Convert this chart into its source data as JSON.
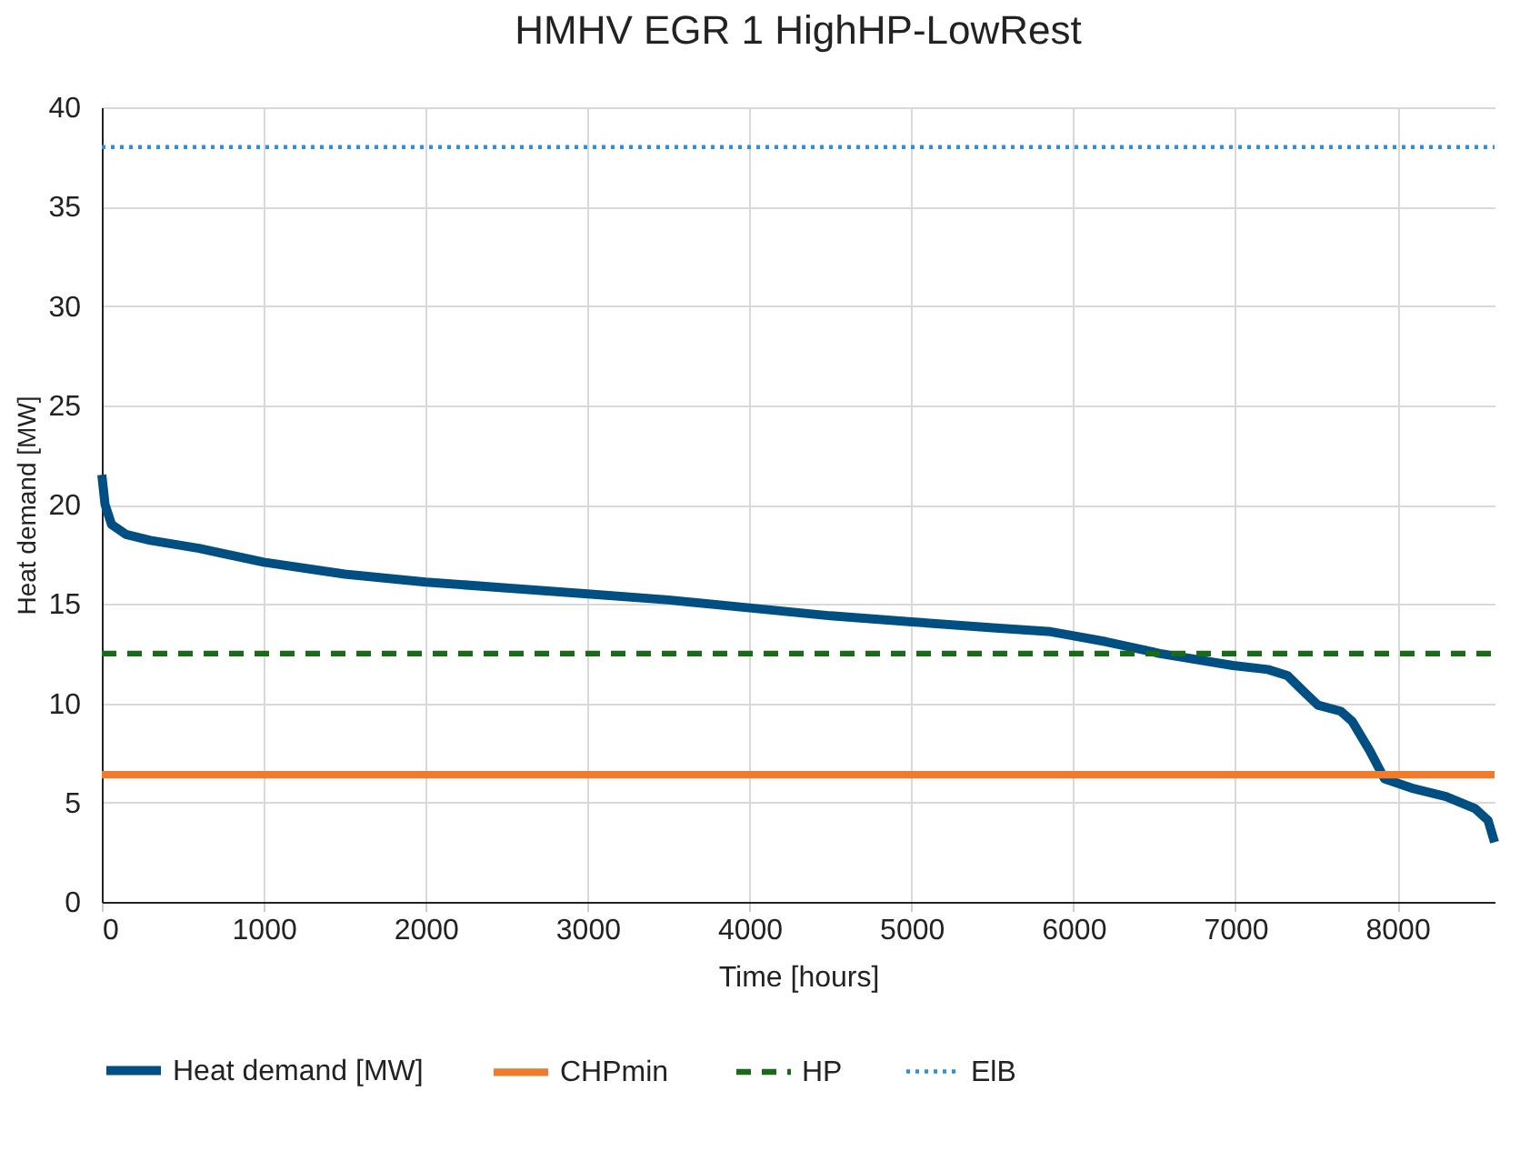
{
  "chart_data": {
    "type": "line",
    "title": "HMHV EGR 1 HighHP-LowRest",
    "xlabel": "Time [hours]",
    "ylabel": "Heat demand [MW]",
    "xlim": [
      0,
      8600
    ],
    "xticks": [
      0,
      1000,
      2000,
      3000,
      4000,
      5000,
      6000,
      7000,
      8000
    ],
    "ylim": [
      0,
      40
    ],
    "yticks": [
      0,
      5,
      10,
      15,
      20,
      25,
      30,
      35,
      40
    ],
    "grid": true,
    "legend": "bottom",
    "marker": "none",
    "series": [
      {
        "name": "Heat demand [MW]",
        "color": "#004f82",
        "line_style": "solid",
        "x": [
          0,
          20,
          60,
          150,
          300,
          600,
          1000,
          1500,
          2000,
          2500,
          3000,
          3500,
          4000,
          4500,
          5000,
          5500,
          5860,
          6200,
          6535,
          6985,
          7200,
          7320,
          7420,
          7510,
          7650,
          7720,
          7830,
          7920,
          8100,
          8300,
          8480,
          8560,
          8600
        ],
        "values": [
          21.5,
          20,
          19,
          18.5,
          18.2,
          17.8,
          17.1,
          16.5,
          16.1,
          15.8,
          15.5,
          15.2,
          14.8,
          14.4,
          14.1,
          13.8,
          13.6,
          13.1,
          12.5,
          11.9,
          11.7,
          11.4,
          10.6,
          9.9,
          9.6,
          9.1,
          7.6,
          6.2,
          5.7,
          5.3,
          4.7,
          4.1,
          3.0
        ]
      },
      {
        "name": "CHPmin",
        "color": "#f07b2b",
        "line_style": "solid",
        "x": [
          0,
          8600
        ],
        "values": [
          6.4,
          6.4
        ]
      },
      {
        "name": "HP",
        "color": "#1a6a1a",
        "line_style": "dashed",
        "x": [
          0,
          8600
        ],
        "values": [
          12.5,
          12.5
        ]
      },
      {
        "name": "ElB",
        "color": "#2f8fdc",
        "line_style": "dotted",
        "x": [
          0,
          8600
        ],
        "values": [
          38,
          38
        ]
      }
    ]
  }
}
